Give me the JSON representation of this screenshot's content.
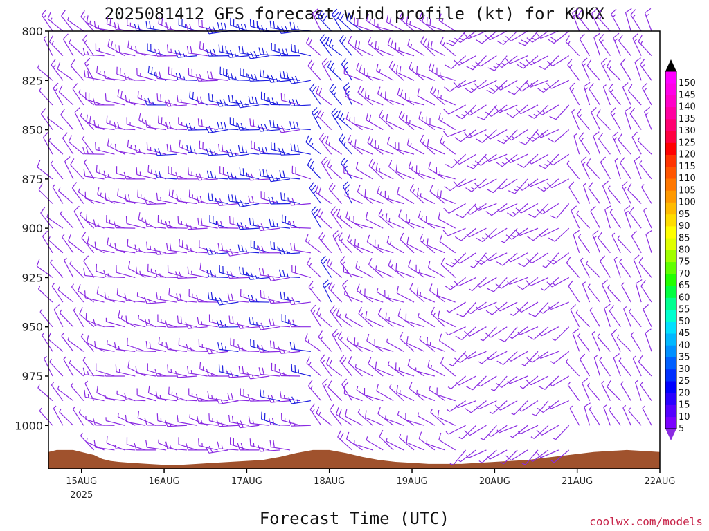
{
  "chart_data": {
    "type": "wind-barb profile",
    "title": "2025081412 GFS forecast wind profile (kt) for KOKX",
    "xlabel": "Forecast Time (UTC)",
    "ylabel": "",
    "credit": "coolwx.com/models",
    "x_ticks": [
      "15AUG",
      "16AUG",
      "17AUG",
      "18AUG",
      "19AUG",
      "20AUG",
      "21AUG",
      "22AUG"
    ],
    "x_ticks_sub": [
      "2025",
      "",
      "",
      "",
      "",
      "",
      "",
      ""
    ],
    "y_ticks": [
      "800",
      "825",
      "850",
      "875",
      "900",
      "925",
      "950",
      "975",
      "1000"
    ],
    "ylim": [
      1022,
      800
    ],
    "colorbar": {
      "labels": [
        "5",
        "10",
        "15",
        "20",
        "25",
        "30",
        "35",
        "40",
        "45",
        "50",
        "55",
        "60",
        "65",
        "70",
        "75",
        "80",
        "85",
        "90",
        "95",
        "100",
        "105",
        "110",
        "115",
        "120",
        "125",
        "130",
        "135",
        "140",
        "145",
        "150"
      ],
      "colors": [
        "#7b00ff",
        "#5500ff",
        "#2a00ff",
        "#0000ff",
        "#0030ff",
        "#0060ff",
        "#0090ff",
        "#00b8ff",
        "#00e0ff",
        "#00ffd0",
        "#00ff90",
        "#00ff40",
        "#20ff00",
        "#60ff00",
        "#a0ff00",
        "#e0ff00",
        "#ffff00",
        "#ffdd00",
        "#ffbb00",
        "#ff9900",
        "#ff7700",
        "#ff5500",
        "#ff3300",
        "#ff0000",
        "#ff0040",
        "#ff0070",
        "#ff00a0",
        "#ff00c8",
        "#ff00e6",
        "#ff00ff"
      ],
      "low_arrow_color": "#8a2be2",
      "high_arrow_color": "#000000"
    },
    "terrain_color": "#a0522d",
    "barb_colors": {
      "light": "#8a2be2",
      "strong": "#1f1fe0"
    },
    "time_axis": {
      "x_start": 14.6,
      "x_end": 22.0,
      "step_days": 0.125
    },
    "surface_pressure_samples": [
      [
        14.6,
        1013.5
      ],
      [
        14.7,
        1012.5
      ],
      [
        14.9,
        1012.5
      ],
      [
        15.0,
        1013.5
      ],
      [
        15.15,
        1015
      ],
      [
        15.25,
        1017
      ],
      [
        15.35,
        1018
      ],
      [
        15.45,
        1018.5
      ],
      [
        15.6,
        1019
      ],
      [
        15.8,
        1019.5
      ],
      [
        16.0,
        1020
      ],
      [
        16.2,
        1020
      ],
      [
        16.4,
        1019.5
      ],
      [
        16.6,
        1019
      ],
      [
        16.8,
        1018.5
      ],
      [
        17.0,
        1018
      ],
      [
        17.2,
        1017.5
      ],
      [
        17.4,
        1016
      ],
      [
        17.6,
        1014
      ],
      [
        17.8,
        1012.5
      ],
      [
        18.0,
        1012.5
      ],
      [
        18.2,
        1014
      ],
      [
        18.4,
        1016
      ],
      [
        18.6,
        1017.5
      ],
      [
        18.8,
        1018.5
      ],
      [
        19.0,
        1019
      ],
      [
        19.2,
        1019.5
      ],
      [
        19.4,
        1019.5
      ],
      [
        19.6,
        1019.5
      ],
      [
        19.8,
        1019
      ],
      [
        20.0,
        1018.5
      ],
      [
        20.2,
        1018
      ],
      [
        20.4,
        1017.5
      ],
      [
        20.6,
        1016.5
      ],
      [
        20.8,
        1015.5
      ],
      [
        21.0,
        1014.5
      ],
      [
        21.2,
        1013.5
      ],
      [
        21.4,
        1013
      ],
      [
        21.6,
        1012.5
      ],
      [
        21.8,
        1013
      ],
      [
        22.0,
        1013.5
      ]
    ],
    "wind_regimes": [
      {
        "t0": 14.6,
        "t1": 15.2,
        "dir": 320,
        "spd": 12
      },
      {
        "t0": 15.2,
        "t1": 16.0,
        "dir": 285,
        "spd": 18
      },
      {
        "t0": 16.0,
        "t1": 16.7,
        "dir": 280,
        "spd": 22
      },
      {
        "t0": 16.7,
        "t1": 17.8,
        "dir": 275,
        "spd": 28
      },
      {
        "t0": 17.8,
        "t1": 18.3,
        "dir": 320,
        "spd": 25
      },
      {
        "t0": 18.3,
        "t1": 19.6,
        "dir": 300,
        "spd": 18
      },
      {
        "t0": 19.6,
        "t1": 21.0,
        "dir": 235,
        "spd": 15
      },
      {
        "t0": 21.0,
        "t1": 22.0,
        "dir": 330,
        "spd": 14
      }
    ]
  }
}
